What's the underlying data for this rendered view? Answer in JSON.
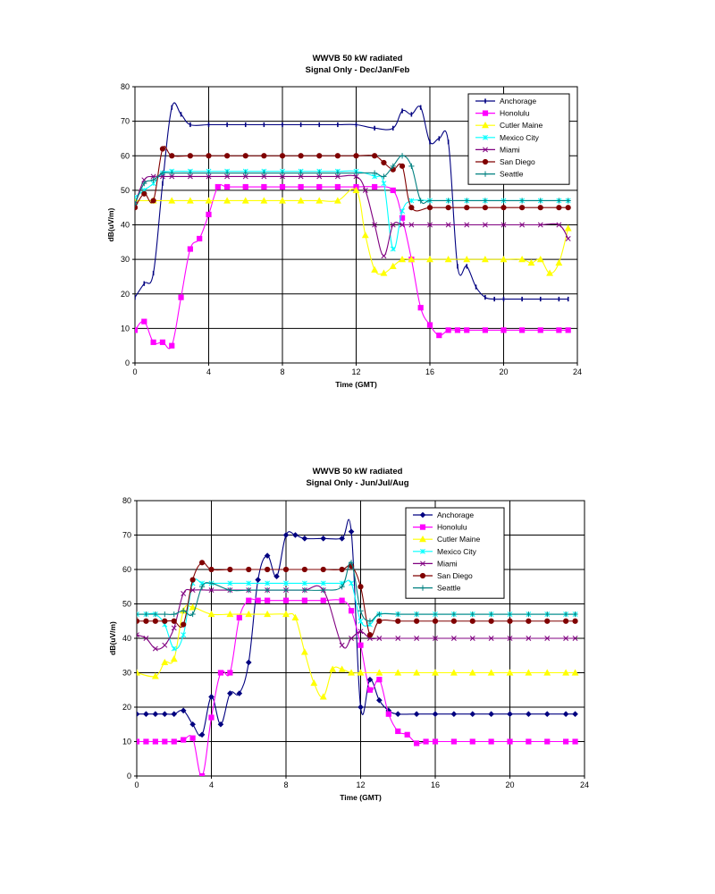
{
  "chart_data": [
    {
      "type": "line",
      "title": "WWVB 50 kW radiated",
      "subtitle": "Signal Only - Dec/Jan/Feb",
      "xlabel": "Time (GMT)",
      "ylabel": "dB(uV/m)",
      "xlim": [
        0,
        24
      ],
      "ylim": [
        0,
        80
      ],
      "xticks": [
        "0",
        "4",
        "8",
        "12",
        "16",
        "20",
        "24"
      ],
      "yticks": [
        "0",
        "10",
        "20",
        "30",
        "40",
        "50",
        "60",
        "70",
        "80"
      ],
      "grid": true,
      "legend_position": "top-right",
      "series": [
        {
          "name": "Anchorage",
          "color": "#000080",
          "marker": "dash",
          "x": [
            0,
            0.5,
            1,
            1.5,
            2,
            2.5,
            3,
            4,
            5,
            6,
            7,
            8,
            9,
            10,
            11,
            12,
            13,
            14,
            14.5,
            15,
            15.5,
            16,
            16.5,
            17,
            17.5,
            18,
            18.5,
            19,
            19.5,
            20,
            21,
            22,
            23,
            23.5
          ],
          "y": [
            19,
            23,
            26,
            52,
            74,
            72,
            69,
            69,
            69,
            69,
            69,
            69,
            69,
            69,
            69,
            69,
            68,
            68,
            73,
            72,
            74,
            64,
            65,
            64,
            28,
            28,
            22,
            19,
            18.5,
            18.5,
            18.5,
            18.5,
            18.5,
            18.5
          ]
        },
        {
          "name": "Honolulu",
          "color": "#ff00ff",
          "marker": "square",
          "x": [
            0,
            0.5,
            1,
            1.5,
            2,
            2.5,
            3,
            3.5,
            4,
            4.5,
            5,
            6,
            7,
            8,
            9,
            10,
            11,
            12,
            13,
            14,
            14.5,
            15,
            15.5,
            16,
            16.5,
            17,
            17.5,
            18,
            19,
            20,
            21,
            22,
            23,
            23.5
          ],
          "y": [
            9.5,
            12,
            6,
            6,
            5,
            19,
            33,
            36,
            43,
            51,
            51,
            51,
            51,
            51,
            51,
            51,
            51,
            51,
            51,
            50,
            42,
            30,
            16,
            11,
            8,
            9.5,
            9.5,
            9.5,
            9.5,
            9.5,
            9.5,
            9.5,
            9.5,
            9.5
          ]
        },
        {
          "name": "Cutler Maine",
          "color": "#ffff00",
          "marker": "triangle",
          "x": [
            0,
            1,
            2,
            3,
            4,
            5,
            6,
            7,
            8,
            9,
            10,
            11,
            12,
            12.5,
            13,
            13.5,
            14,
            14.5,
            15,
            16,
            17,
            18,
            19,
            20,
            21,
            21.5,
            22,
            22.5,
            23,
            23.5
          ],
          "y": [
            47,
            47,
            47,
            47,
            47,
            47,
            47,
            47,
            47,
            47,
            47,
            47,
            50,
            37,
            27,
            26,
            28,
            30,
            30,
            30,
            30,
            30,
            30,
            30,
            30,
            29,
            30,
            26,
            29,
            39
          ]
        },
        {
          "name": "Mexico City",
          "color": "#00ffff",
          "marker": "star",
          "x": [
            0,
            0.5,
            1,
            1.5,
            2,
            3,
            4,
            5,
            6,
            7,
            8,
            9,
            10,
            11,
            12,
            13,
            13.5,
            14,
            14.5,
            15,
            16,
            17,
            18,
            19,
            20,
            21,
            22,
            23,
            23.5
          ],
          "y": [
            48,
            50,
            52,
            55,
            55.5,
            55.5,
            55.5,
            55.5,
            55.5,
            55.5,
            55.5,
            55.5,
            55.5,
            55.5,
            55.5,
            54,
            52,
            33,
            44,
            47,
            47,
            47,
            47,
            47,
            47,
            47,
            47,
            47,
            47
          ]
        },
        {
          "name": "Miami",
          "color": "#800080",
          "marker": "x",
          "x": [
            0,
            0.5,
            1,
            1.5,
            2,
            3,
            4,
            5,
            6,
            7,
            8,
            9,
            10,
            11,
            12,
            12.5,
            13,
            13.5,
            14,
            14.5,
            15,
            16,
            17,
            18,
            19,
            20,
            21,
            22,
            23,
            23.5
          ],
          "y": [
            46,
            53,
            54,
            54,
            54,
            54,
            54,
            54,
            54,
            54,
            54,
            54,
            54,
            54,
            54,
            50,
            40,
            31,
            40,
            40,
            40,
            40,
            40,
            40,
            40,
            40,
            40,
            40,
            40,
            36
          ]
        },
        {
          "name": "San Diego",
          "color": "#800000",
          "marker": "circle",
          "x": [
            0,
            0.5,
            1,
            1.5,
            2,
            3,
            4,
            5,
            6,
            7,
            8,
            9,
            10,
            11,
            12,
            13,
            13.5,
            14,
            14.5,
            15,
            16,
            17,
            18,
            19,
            20,
            21,
            22,
            23,
            23.5
          ],
          "y": [
            45,
            49,
            47,
            62,
            60,
            60,
            60,
            60,
            60,
            60,
            60,
            60,
            60,
            60,
            60,
            60,
            58,
            56,
            57,
            45,
            45,
            45,
            45,
            45,
            45,
            45,
            45,
            45,
            45
          ]
        },
        {
          "name": "Seattle",
          "color": "#008080",
          "marker": "plus",
          "x": [
            0,
            0.5,
            1,
            1.5,
            2,
            3,
            4,
            5,
            6,
            7,
            8,
            9,
            10,
            11,
            12,
            13,
            13.5,
            14,
            14.5,
            15,
            15.5,
            16,
            17,
            18,
            19,
            20,
            21,
            22,
            23,
            23.5
          ],
          "y": [
            46,
            52,
            53,
            55,
            55,
            55,
            55,
            55,
            55,
            55,
            55,
            55,
            55,
            55,
            55,
            55,
            54,
            57,
            60,
            57,
            47,
            47,
            47,
            47,
            47,
            47,
            47,
            47,
            47,
            47
          ]
        }
      ]
    },
    {
      "type": "line",
      "title": "WWVB 50 kW radiated",
      "subtitle": "Signal Only - Jun/Jul/Aug",
      "xlabel": "Time (GMT)",
      "ylabel": "dB(uV/m)",
      "xlim": [
        0,
        24
      ],
      "ylim": [
        0,
        80
      ],
      "xticks": [
        "0",
        "4",
        "8",
        "12",
        "16",
        "20",
        "24"
      ],
      "yticks": [
        "0",
        "10",
        "20",
        "30",
        "40",
        "50",
        "60",
        "70",
        "80"
      ],
      "grid": true,
      "legend_position": "top-right",
      "series": [
        {
          "name": "Anchorage",
          "color": "#000080",
          "marker": "diamond",
          "x": [
            0,
            0.5,
            1,
            1.5,
            2,
            2.5,
            3,
            3.5,
            4,
            4.5,
            5,
            5.5,
            6,
            6.5,
            7,
            7.5,
            8,
            8.5,
            9,
            10,
            11,
            11.5,
            12,
            12.5,
            13,
            13.5,
            14,
            15,
            16,
            17,
            18,
            19,
            20,
            21,
            22,
            23,
            23.5
          ],
          "y": [
            18,
            18,
            18,
            18,
            18,
            19,
            15,
            12,
            23,
            15,
            24,
            24,
            33,
            57,
            64,
            58,
            70,
            70,
            69,
            69,
            69,
            71,
            20,
            28,
            22,
            19,
            18,
            18,
            18,
            18,
            18,
            18,
            18,
            18,
            18,
            18,
            18
          ]
        },
        {
          "name": "Honolulu",
          "color": "#ff00ff",
          "marker": "square",
          "x": [
            0,
            0.5,
            1,
            1.5,
            2,
            2.5,
            3,
            3.5,
            4,
            4.5,
            5,
            5.5,
            6,
            6.5,
            7,
            8,
            9,
            10,
            11,
            11.5,
            12,
            12.5,
            13,
            13.5,
            14,
            14.5,
            15,
            15.5,
            16,
            17,
            18,
            19,
            20,
            21,
            22,
            23,
            23.5
          ],
          "y": [
            10,
            10,
            10,
            10,
            10,
            10.5,
            11,
            0,
            17,
            30,
            30,
            46,
            51,
            51,
            51,
            51,
            51,
            51,
            51,
            48,
            38,
            25,
            28,
            18,
            13,
            12,
            9.5,
            10,
            10,
            10,
            10,
            10,
            10,
            10,
            10,
            10,
            10
          ]
        },
        {
          "name": "Cutler Maine",
          "color": "#ffff00",
          "marker": "triangle",
          "x": [
            0,
            1,
            1.5,
            2,
            2.5,
            3,
            4,
            5,
            6,
            7,
            8,
            8.5,
            9,
            9.5,
            10,
            10.5,
            11,
            11.5,
            12,
            13,
            14,
            15,
            16,
            17,
            18,
            19,
            20,
            21,
            22,
            23,
            23.5
          ],
          "y": [
            30,
            29,
            33,
            34,
            48,
            49,
            47,
            47,
            47,
            47,
            47,
            46,
            36,
            27,
            23,
            31,
            31,
            30,
            30,
            30,
            30,
            30,
            30,
            30,
            30,
            30,
            30,
            30,
            30,
            30,
            30
          ]
        },
        {
          "name": "Mexico City",
          "color": "#00ffff",
          "marker": "star",
          "x": [
            0,
            0.5,
            1,
            1.5,
            2,
            2.5,
            3,
            3.5,
            4,
            5,
            6,
            7,
            8,
            9,
            10,
            11,
            11.5,
            12,
            12.5,
            13,
            14,
            15,
            16,
            17,
            18,
            19,
            20,
            21,
            22,
            23,
            23.5
          ],
          "y": [
            47,
            47,
            47,
            44,
            37,
            41,
            56,
            56,
            56,
            56,
            56,
            56,
            56,
            56,
            56,
            56,
            56,
            45,
            44,
            47,
            47,
            47,
            47,
            47,
            47,
            47,
            47,
            47,
            47,
            47,
            47
          ]
        },
        {
          "name": "Miami",
          "color": "#800080",
          "marker": "x",
          "x": [
            0,
            0.5,
            1,
            1.5,
            2,
            2.5,
            3,
            4,
            5,
            6,
            7,
            8,
            9,
            10,
            11,
            11.5,
            12,
            12.5,
            13,
            14,
            15,
            16,
            17,
            18,
            19,
            20,
            21,
            22,
            23,
            23.5
          ],
          "y": [
            41,
            40,
            37,
            38,
            43,
            53,
            54,
            54,
            54,
            54,
            54,
            54,
            54,
            54,
            38,
            40,
            42,
            40,
            40,
            40,
            40,
            40,
            40,
            40,
            40,
            40,
            40,
            40,
            40,
            40
          ]
        },
        {
          "name": "San Diego",
          "color": "#800000",
          "marker": "circle",
          "x": [
            0,
            0.5,
            1,
            1.5,
            2,
            2.5,
            3,
            3.5,
            4,
            5,
            6,
            7,
            8,
            9,
            10,
            11,
            11.5,
            12,
            12.5,
            13,
            14,
            15,
            16,
            17,
            18,
            19,
            20,
            21,
            22,
            23,
            23.5
          ],
          "y": [
            45,
            45,
            45,
            45,
            45,
            44,
            57,
            62,
            60,
            60,
            60,
            60,
            60,
            60,
            60,
            60,
            61,
            55,
            41,
            45,
            45,
            45,
            45,
            45,
            45,
            45,
            45,
            45,
            45,
            45,
            45
          ]
        },
        {
          "name": "Seattle",
          "color": "#008080",
          "marker": "plus",
          "x": [
            0,
            0.5,
            1,
            1.5,
            2,
            2.5,
            3,
            3.5,
            4,
            5,
            6,
            7,
            8,
            9,
            10,
            11,
            11.5,
            12,
            12.5,
            13,
            14,
            15,
            16,
            17,
            18,
            19,
            20,
            21,
            22,
            23,
            23.5
          ],
          "y": [
            47,
            47,
            47,
            47,
            47,
            48,
            47,
            55,
            56,
            54,
            54,
            54,
            54,
            54,
            54,
            55,
            62,
            48,
            45,
            47,
            47,
            47,
            47,
            47,
            47,
            47,
            47,
            47,
            47,
            47,
            47
          ]
        }
      ]
    }
  ]
}
